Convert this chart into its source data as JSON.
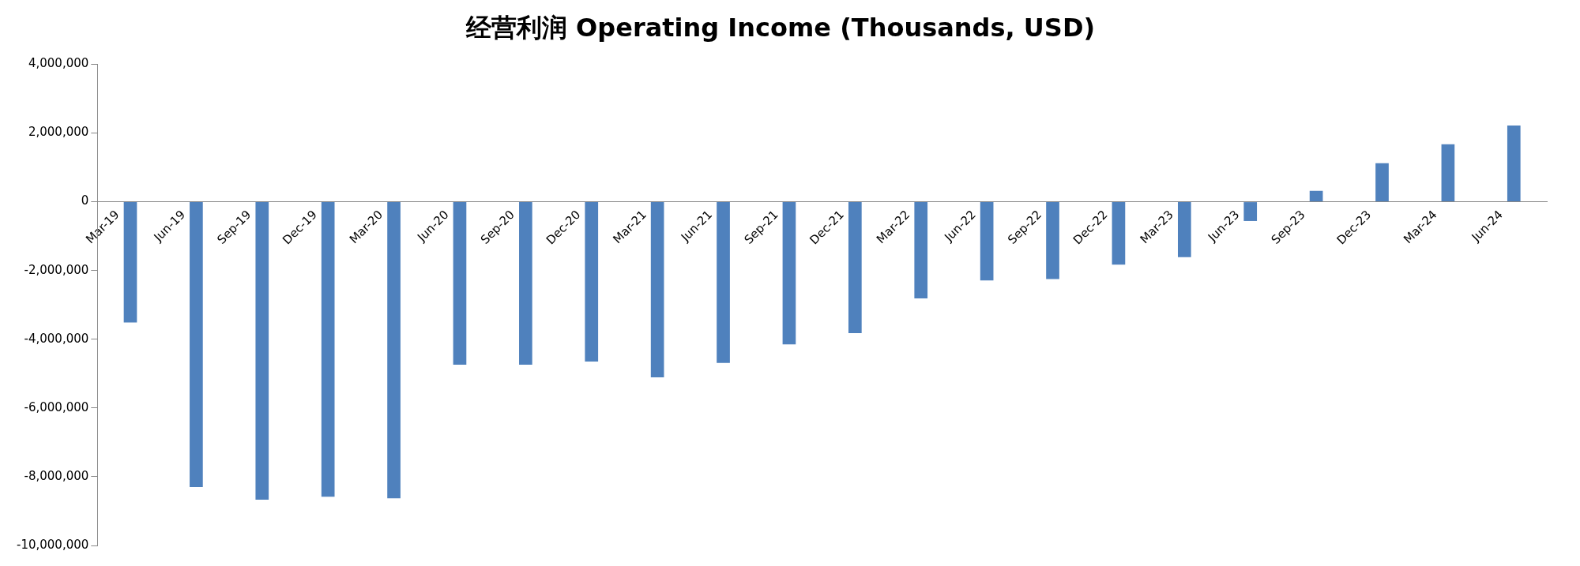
{
  "chart_data": {
    "type": "bar",
    "title": "经营利润 Operating Income (Thousands, USD)",
    "categories": [
      "Mar-19",
      "Jun-19",
      "Sep-19",
      "Dec-19",
      "Mar-20",
      "Jun-20",
      "Sep-20",
      "Dec-20",
      "Mar-21",
      "Jun-21",
      "Sep-21",
      "Dec-21",
      "Mar-22",
      "Jun-22",
      "Sep-22",
      "Dec-22",
      "Mar-23",
      "Jun-23",
      "Sep-23",
      "Dec-23",
      "Mar-24",
      "Jun-24"
    ],
    "values": [
      -3510000,
      -8300000,
      -8670000,
      -8580000,
      -8630000,
      -4740000,
      -4740000,
      -4650000,
      -5110000,
      -4690000,
      -4150000,
      -3820000,
      -2810000,
      -2290000,
      -2250000,
      -1830000,
      -1610000,
      -560000,
      320000,
      1120000,
      1670000,
      2220000
    ],
    "color": "#4f81bd",
    "ylim": [
      -10000000,
      4000000
    ],
    "yticks": [
      {
        "value": -10000000,
        "label": "-10,000,000"
      },
      {
        "value": -8000000,
        "label": "-8,000,000"
      },
      {
        "value": -6000000,
        "label": "-6,000,000"
      },
      {
        "value": -4000000,
        "label": "-4,000,000"
      },
      {
        "value": -2000000,
        "label": "-2,000,000"
      },
      {
        "value": 0,
        "label": "0"
      },
      {
        "value": 2000000,
        "label": "2,000,000"
      },
      {
        "value": 4000000,
        "label": "4,000,000"
      }
    ],
    "grid": false,
    "legend": false
  }
}
